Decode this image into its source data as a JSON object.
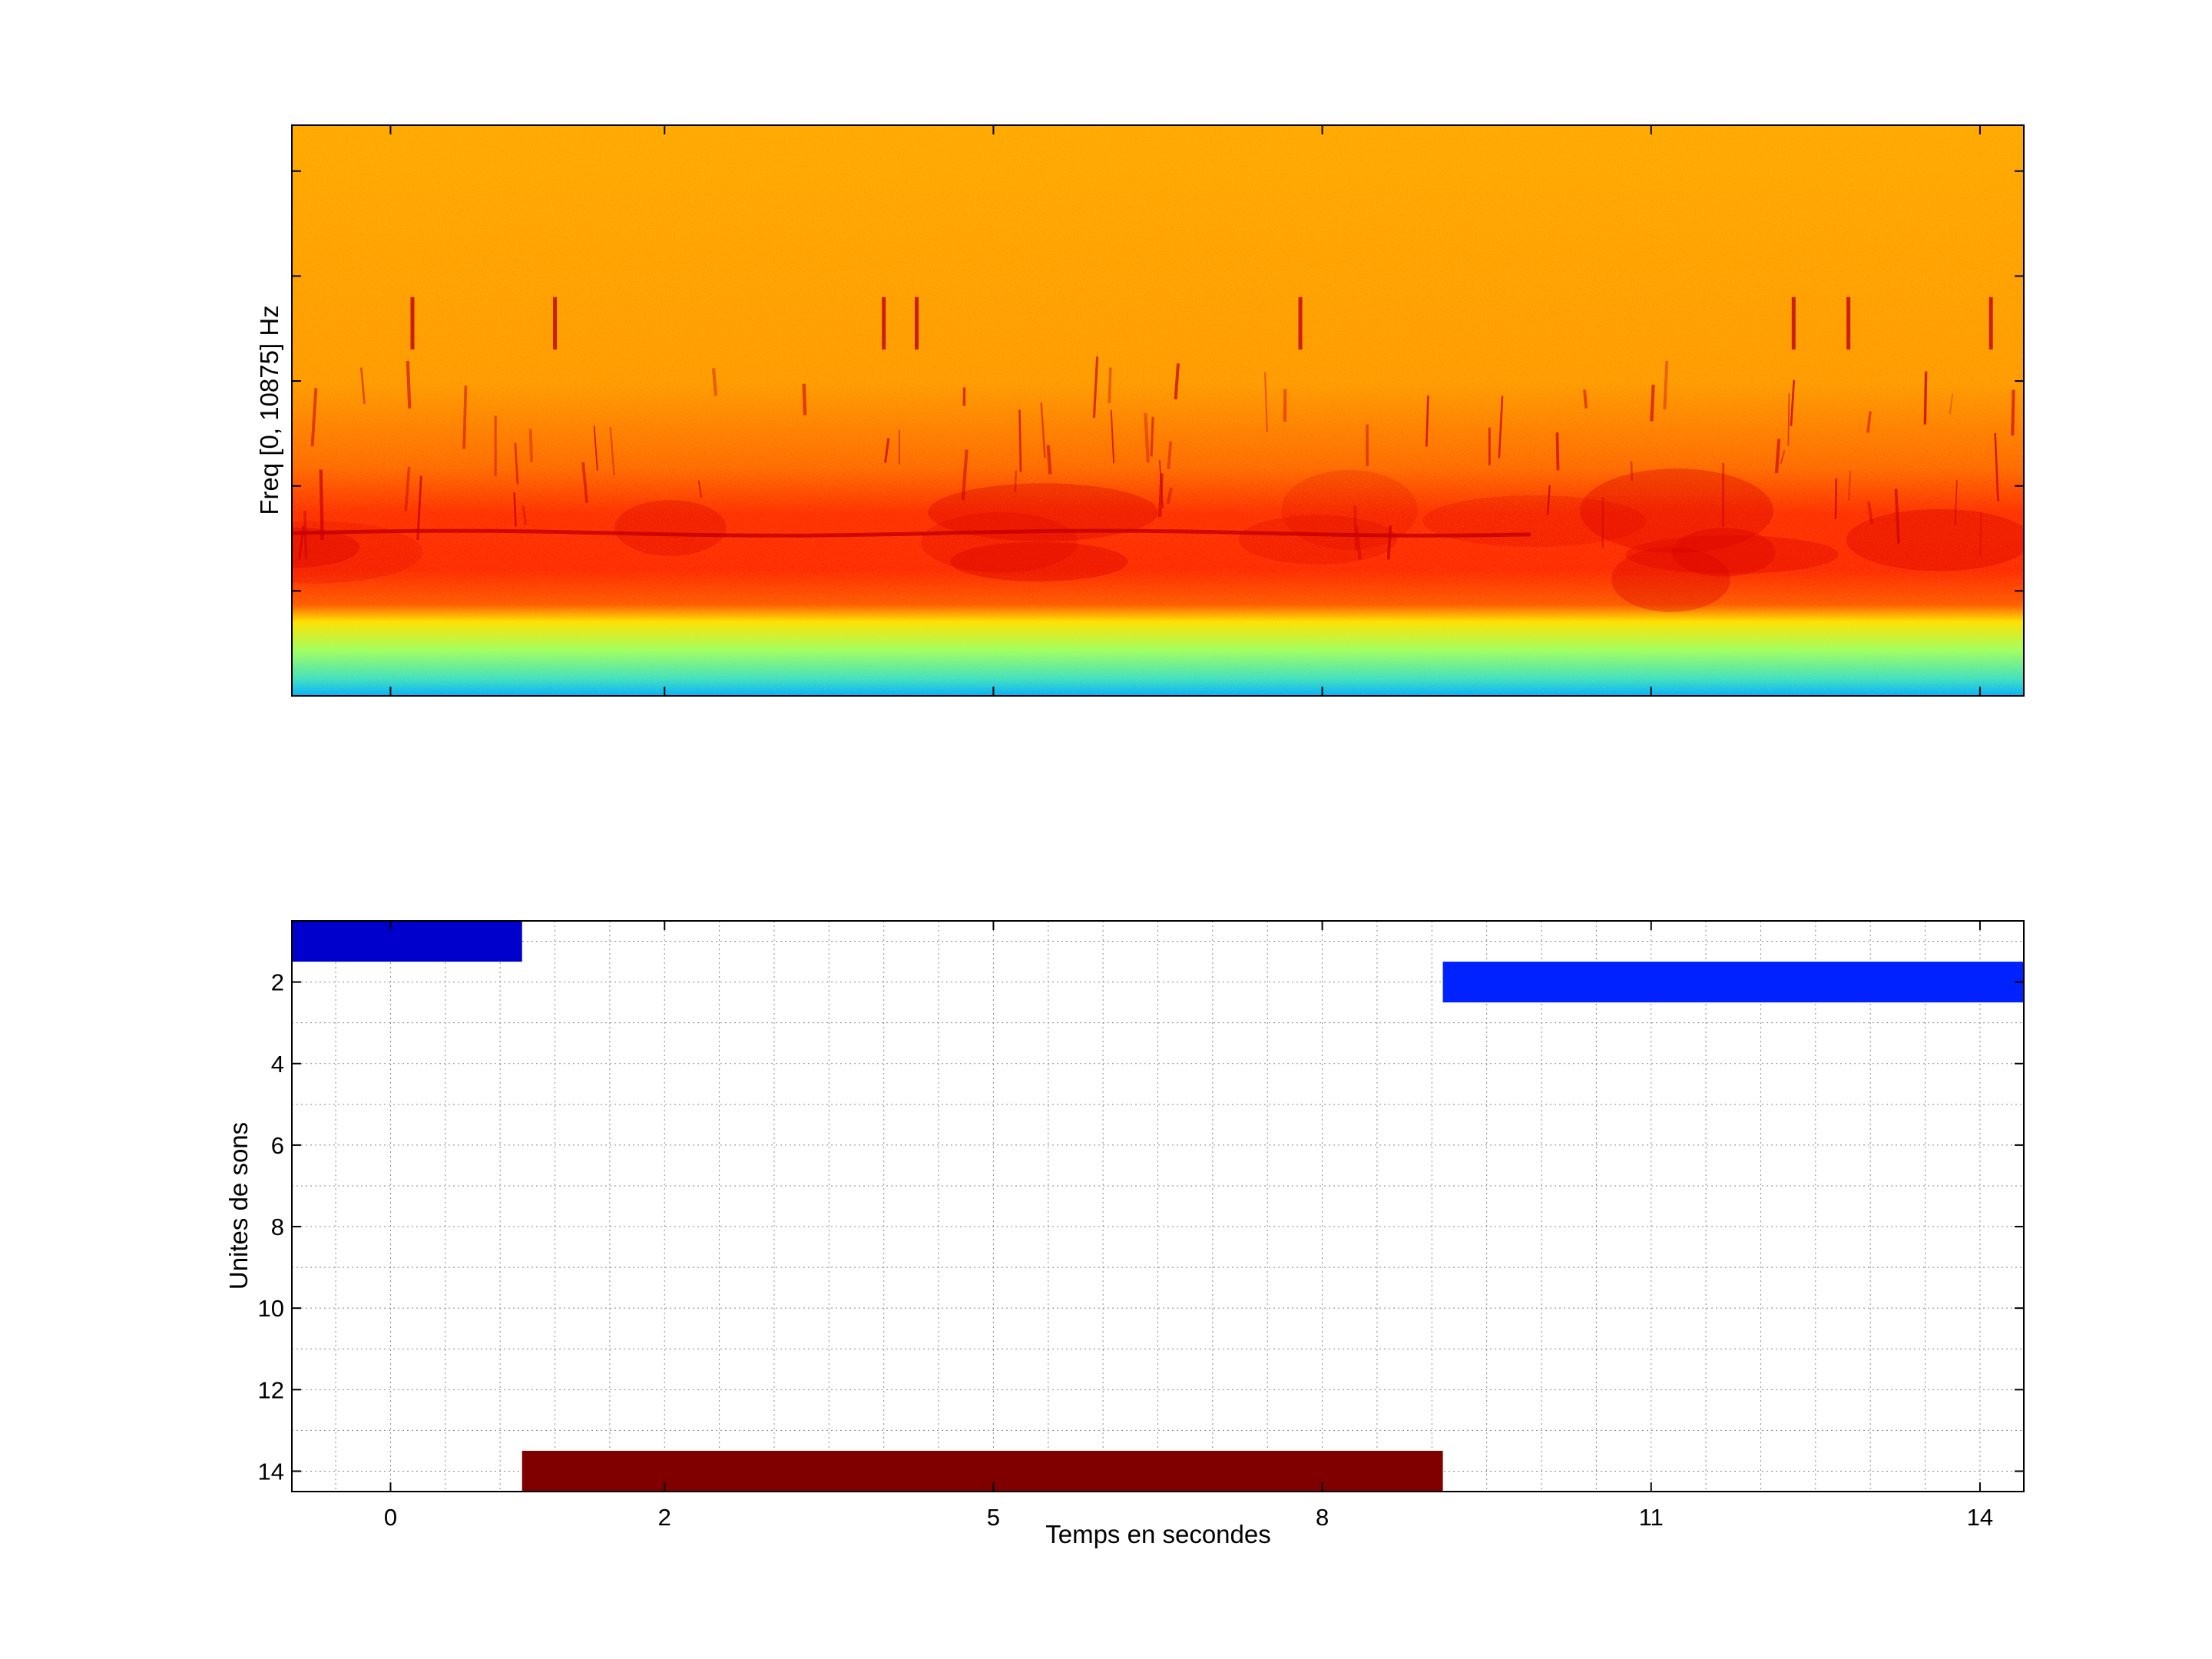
{
  "chart_data": [
    {
      "type": "heatmap",
      "ylabel": "Freq [0, 10875] Hz",
      "xlabel": "",
      "y_range_hz": [
        0,
        10875
      ],
      "x_range_s": [
        -0.9,
        14.9
      ],
      "colormap": "jet",
      "grid": false,
      "features": {
        "noise_floor_band_hz": [
          0,
          2200
        ],
        "dense_energy_band_hz": [
          2200,
          3600
        ],
        "sustained_tone_hz": 3100,
        "sustained_tone_time_s": [
          -0.9,
          10.4
        ]
      }
    },
    {
      "type": "bar",
      "orientation": "horizontal-segments",
      "xlabel": "Temps en secondes",
      "ylabel": "Unites de sons",
      "xticks": [
        "0",
        "2",
        "5",
        "8",
        "11",
        "14"
      ],
      "xtick_values": [
        0,
        2.5,
        5.5,
        8.5,
        11.5,
        14.5
      ],
      "xlim": [
        -0.9,
        14.9
      ],
      "yticks": [
        "2",
        "4",
        "6",
        "8",
        "10",
        "12",
        "14"
      ],
      "ytick_values": [
        2,
        4,
        6,
        8,
        10,
        12,
        14
      ],
      "ylim": [
        0.5,
        14.5
      ],
      "y_reversed": true,
      "grid": true,
      "segments": [
        {
          "unit": 1,
          "start": -0.9,
          "end": 1.2,
          "color": "#0000cc"
        },
        {
          "unit": 2,
          "start": 9.6,
          "end": 14.9,
          "color": "#0022ff"
        },
        {
          "unit": 14,
          "start": 1.2,
          "end": 9.6,
          "color": "#800000"
        }
      ]
    }
  ]
}
